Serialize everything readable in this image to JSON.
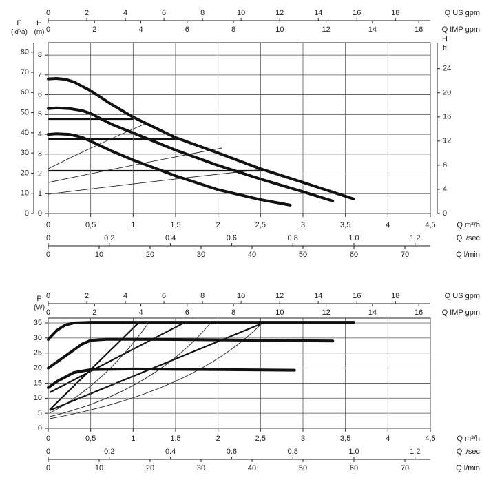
{
  "chart_data": [
    {
      "type": "line",
      "xlabel": "Q m³/h",
      "xlim": [
        0,
        4.5
      ],
      "xticks": [
        0,
        {
          "value": 0.5,
          "label": "0,5"
        },
        1,
        {
          "value": 1.5,
          "label": "1,5"
        },
        2,
        {
          "value": 2.5,
          "label": "2,5"
        },
        3,
        {
          "value": 3.5,
          "label": "3,5"
        },
        4,
        {
          "value": 4.5,
          "label": "4,5"
        }
      ],
      "ylabel": "H",
      "yunit": "(m)",
      "ylim": [
        0,
        8.63
      ],
      "yticks": [
        0,
        1,
        2,
        3,
        4,
        5,
        6,
        7,
        8
      ],
      "grid": true,
      "top_axes": [
        {
          "label": "Q US gpm",
          "lim": [
            0,
            19.81
          ],
          "ticks": [
            0,
            2,
            4,
            6,
            8,
            10,
            12,
            14,
            16,
            18
          ]
        },
        {
          "label": "Q IMP gpm",
          "lim": [
            0,
            16.5
          ],
          "ticks": [
            0,
            2,
            4,
            6,
            8,
            10,
            12,
            14,
            16
          ]
        }
      ],
      "bottom_axes": [
        {
          "label": "Q l/sec",
          "lim": [
            0,
            1.25
          ],
          "ticks": [
            0,
            0.2,
            0.4,
            0.6,
            0.8,
            {
              "value": 1,
              "label": "1.0"
            },
            1.2
          ]
        },
        {
          "label": "Q l/min",
          "lim": [
            0,
            75
          ],
          "ticks": [
            0,
            10,
            20,
            30,
            40,
            50,
            60,
            70
          ]
        }
      ],
      "extra_y_axes": [
        {
          "side": "left",
          "label": "P",
          "unit": "(kPa)",
          "lim": [
            0,
            84.7
          ],
          "ticks": [
            0,
            10,
            20,
            30,
            40,
            50,
            60,
            70,
            80
          ]
        },
        {
          "side": "right",
          "label": "H",
          "unit": "ft",
          "lim": [
            0,
            28.3
          ],
          "ticks": [
            0,
            4,
            8,
            12,
            16,
            20,
            24
          ]
        }
      ],
      "series": [
        {
          "color": "#111111",
          "x": [
            0,
            0.1,
            0.2,
            0.3,
            0.5,
            0.75,
            1,
            1.5,
            2,
            2.5,
            3,
            3.6
          ],
          "values": [
            6.8,
            6.82,
            6.78,
            6.65,
            6.2,
            5.5,
            4.87,
            3.83,
            3.06,
            2.26,
            1.57,
            0.73
          ]
        },
        {
          "color": "#111111",
          "x": [
            0,
            0.1,
            0.25,
            0.4,
            0.5,
            0.75,
            1,
            1.5,
            2,
            2.5,
            3,
            3.35
          ],
          "values": [
            5.3,
            5.33,
            5.3,
            5.2,
            5.05,
            4.5,
            4.07,
            3.2,
            2.43,
            1.74,
            1.1,
            0.63
          ]
        },
        {
          "color": "#111111",
          "x": [
            0,
            0.1,
            0.25,
            0.4,
            0.5,
            0.75,
            1,
            1.5,
            2,
            2.5,
            2.85
          ],
          "values": [
            4.0,
            4.03,
            4.0,
            3.85,
            3.65,
            3.15,
            2.7,
            1.9,
            1.2,
            0.7,
            0.42
          ]
        }
      ]
    },
    {
      "type": "line",
      "xlabel": "Q m³/h",
      "xlim": [
        0,
        4.5
      ],
      "xticks": [
        0,
        {
          "value": 0.5,
          "label": "0,5"
        },
        1,
        {
          "value": 1.5,
          "label": "1,5"
        },
        2,
        {
          "value": 2.5,
          "label": "2,5"
        },
        3,
        {
          "value": 3.5,
          "label": "3,5"
        },
        4,
        {
          "value": 4.5,
          "label": "4,5"
        }
      ],
      "ylabel": "P",
      "yunit": "(W)",
      "ylim": [
        0,
        36.6
      ],
      "yticks": [
        0,
        5,
        10,
        15,
        20,
        25,
        30,
        35
      ],
      "grid": true,
      "top_axes": [
        {
          "label": "Q US gpm",
          "lim": [
            0,
            19.81
          ],
          "ticks": [
            0,
            2,
            4,
            6,
            8,
            10,
            12,
            14,
            16,
            18
          ]
        },
        {
          "label": "Q IMP gpm",
          "lim": [
            0,
            16.5
          ],
          "ticks": [
            0,
            2,
            4,
            6,
            8,
            10,
            12,
            14,
            16
          ]
        }
      ],
      "bottom_axes": [
        {
          "label": "Q l/sec",
          "lim": [
            0,
            1.25
          ],
          "ticks": [
            0,
            0.2,
            0.4,
            0.6,
            0.8,
            {
              "value": 1,
              "label": "1.0"
            },
            1.2
          ]
        },
        {
          "label": "Q l/min",
          "lim": [
            0,
            75
          ],
          "ticks": [
            0,
            10,
            20,
            30,
            40,
            50,
            60,
            70
          ]
        }
      ],
      "extra_y_axes": [],
      "series": [
        {
          "color": "#111111",
          "x": [
            0,
            0.1,
            0.2,
            0.3,
            0.5,
            1,
            2,
            3.6
          ],
          "values": [
            29.5,
            32.5,
            34.3,
            35,
            35.2,
            35.2,
            35.2,
            35.2
          ]
        },
        {
          "color": "#111111",
          "x": [
            0,
            0.2,
            0.4,
            0.5,
            0.7,
            1.5,
            3.35
          ],
          "values": [
            20,
            24,
            28,
            29.2,
            29.6,
            29.5,
            29
          ]
        },
        {
          "color": "#111111",
          "x": [
            0,
            0.1,
            0.3,
            0.5,
            1,
            2,
            2.9
          ],
          "values": [
            13.5,
            15.5,
            18.5,
            19.5,
            19.7,
            19.5,
            19.3
          ]
        }
      ]
    }
  ]
}
